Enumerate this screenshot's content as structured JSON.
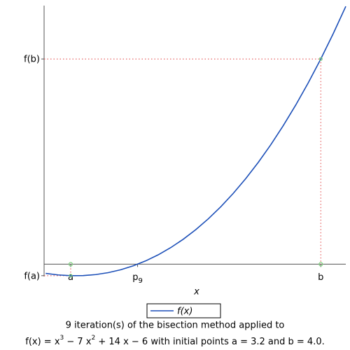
{
  "chart_data": {
    "type": "line",
    "x": [
      3.12,
      3.16,
      3.2,
      3.24,
      3.28,
      3.32,
      3.36,
      3.4,
      3.44,
      3.48,
      3.52,
      3.56,
      3.6,
      3.64,
      3.68,
      3.72,
      3.76,
      3.8,
      3.84,
      3.88,
      3.92,
      3.96,
      4.0,
      4.04,
      4.08
    ],
    "series": [
      {
        "name": "f(x)",
        "color": "#1c4fb8",
        "values": [
          -0.08947,
          -0.1047,
          -0.112,
          -0.11098,
          -0.10125,
          -0.08243,
          -0.05414,
          -0.016,
          0.03238,
          0.09139,
          0.16141,
          0.24282,
          0.336,
          0.44134,
          0.55923,
          0.69005,
          0.83418,
          0.992,
          1.1639,
          1.35027,
          1.55149,
          1.76794,
          2,
          2.24806,
          2.51251
        ]
      }
    ],
    "xlim": [
      3.115,
      4.08
    ],
    "ylim": [
      -0.12,
      2.52
    ],
    "xticks": [
      {
        "value": 3.2,
        "label": "a"
      },
      {
        "value": 3.4140625,
        "label": "p",
        "sub": "9"
      },
      {
        "value": 4.0,
        "label": "b"
      }
    ],
    "yticks": [
      {
        "value": -0.112,
        "label": "f(a)"
      },
      {
        "value": 2,
        "label": "f(b)"
      }
    ],
    "x_label": "x",
    "guide_color": "#e04040",
    "point_color": "#7ed07e",
    "caption_line1": "9 iteration(s) of the bisection method applied to",
    "caption_line2": [
      "f(x) = x",
      "3",
      " − 7 x",
      "2",
      " + 14 x − 6 with initial points a = 3.2 and b = 4.0."
    ]
  }
}
